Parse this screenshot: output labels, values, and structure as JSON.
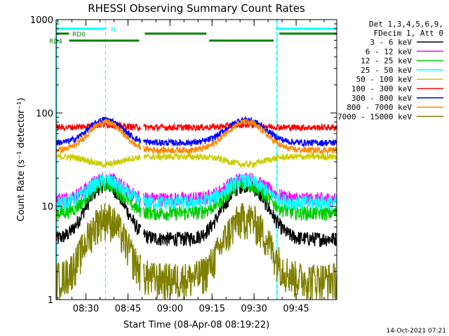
{
  "chart_data": {
    "type": "line",
    "title": "RHESSI Observing Summary Count Rates",
    "xlabel": "Start Time (08-Apr-08 08:19:22)",
    "ylabel": "Count Rate (s⁻¹ detector⁻¹)",
    "yscale": "log",
    "ylim": [
      1,
      1000
    ],
    "xlim": [
      "08:19:22",
      "09:59:30"
    ],
    "y_ticks": [
      "1",
      "10",
      "100",
      "1000"
    ],
    "x_ticks": [
      "08:30",
      "08:45",
      "09:00",
      "09:15",
      "09:30",
      "09:45"
    ],
    "legend_header": [
      "Det 1,3,4,5,6,9,",
      "FDecim 1, Att 0"
    ],
    "legend_position": "right",
    "timestamp": "14-Oct-2021 07:21",
    "series": [
      {
        "name": "3 - 6 keV",
        "color": "#000000",
        "base": 4.5,
        "peak_add": 12.5
      },
      {
        "name": "6 - 12 keV",
        "color": "#ff00ff",
        "base": 12,
        "peak_add": 8
      },
      {
        "name": "12 - 25 keV",
        "color": "#00cc00",
        "base": 8.5,
        "peak_add": 9
      },
      {
        "name": "25 - 50 keV",
        "color": "#00ffff",
        "base": 11,
        "peak_add": 8
      },
      {
        "name": "50 - 100 keV",
        "color": "#cccc00",
        "base": 34,
        "peak_add": -6
      },
      {
        "name": "100 - 300 keV",
        "color": "#ff0000",
        "base": 70,
        "peak_add": 5
      },
      {
        "name": "300 - 800 keV",
        "color": "#0000ff",
        "base": 48,
        "peak_add": 37
      },
      {
        "name": "800 - 7000 keV",
        "color": "#ff8800",
        "base": 40,
        "peak_add": 40
      },
      {
        "name": "7000 - 15000 keV",
        "color": "#808000",
        "base": 1.7,
        "peak_add": 6
      }
    ],
    "flags": [
      {
        "name": "N",
        "color": "#00ffff",
        "segments": [
          [
            "08:19:22",
            "08:37:00"
          ],
          [
            "09:38:00",
            "09:59:30"
          ]
        ]
      },
      {
        "name": "RD0",
        "color": "#008000",
        "segments": [
          [
            "08:19:22",
            "08:24:00"
          ],
          [
            "08:51:00",
            "09:13:00"
          ],
          [
            "09:39:00",
            "09:59:30"
          ]
        ]
      },
      {
        "name": "RD4",
        "color": "#008000",
        "segments": [
          [
            "08:24:00",
            "08:49:00"
          ],
          [
            "09:14:00",
            "09:37:00"
          ]
        ]
      }
    ],
    "eclipse_lines": [
      "08:37:00",
      "09:38:00",
      "09:59:30"
    ]
  }
}
